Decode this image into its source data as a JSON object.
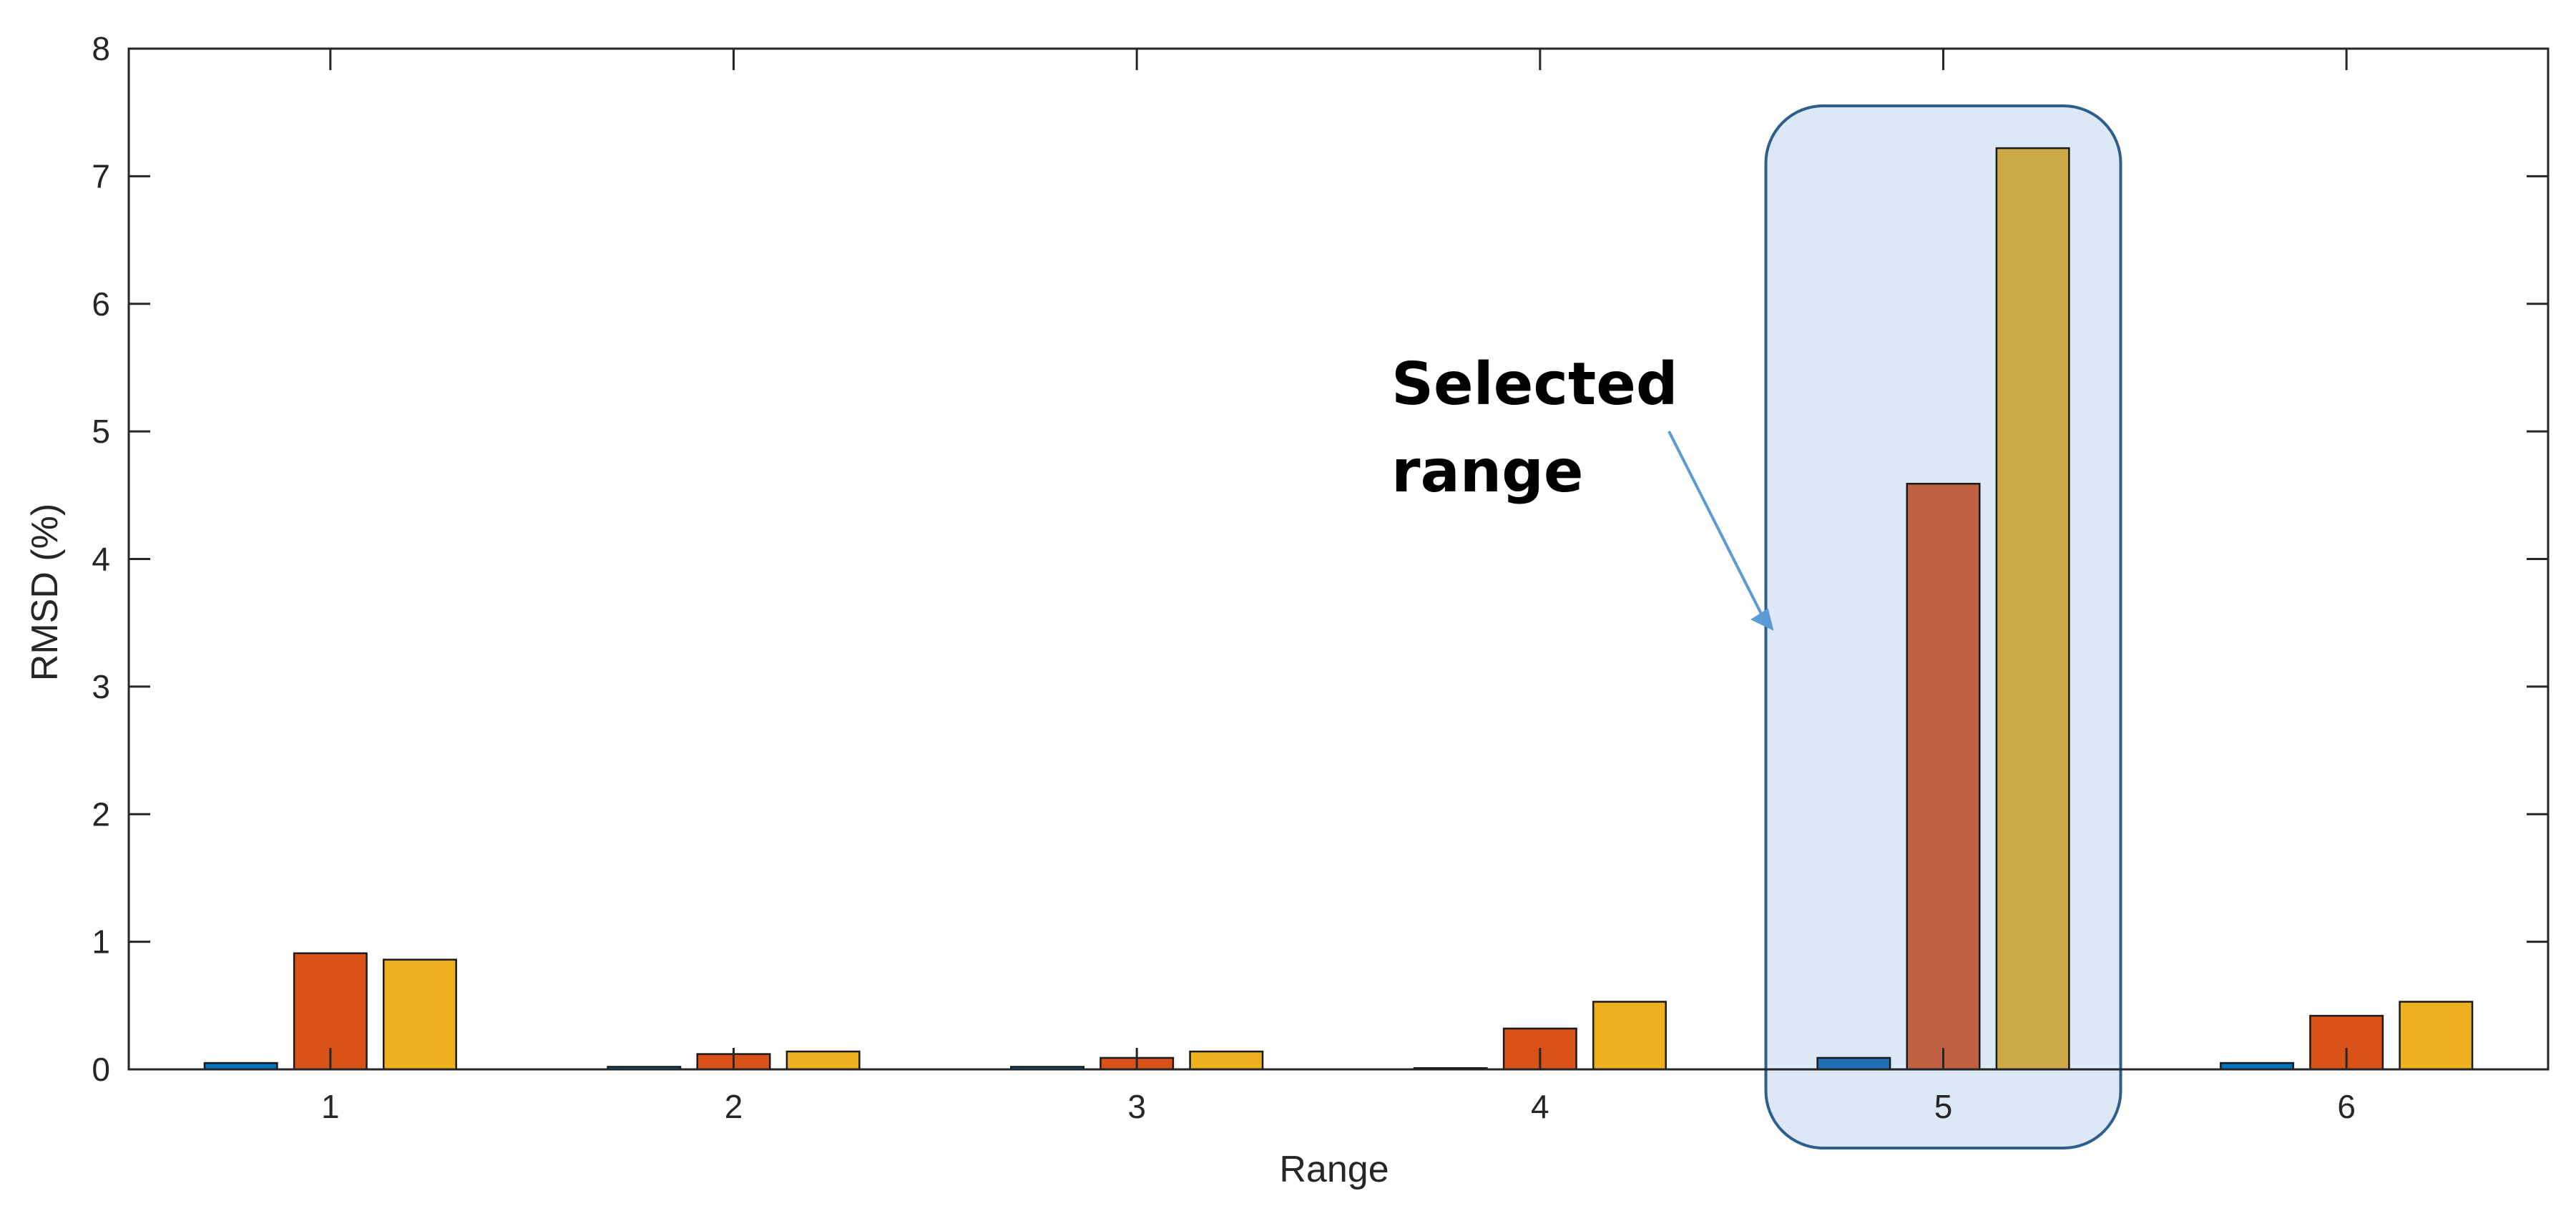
{
  "chart_data": {
    "type": "bar",
    "title": "",
    "xlabel": "Range",
    "ylabel": "RMSD (%)",
    "ylim": [
      0,
      8
    ],
    "yticks": [
      0,
      1,
      2,
      3,
      4,
      5,
      6,
      7,
      8
    ],
    "categories": [
      "1",
      "2",
      "3",
      "4",
      "5",
      "6"
    ],
    "series": [
      {
        "values": [
          0.05,
          0.02,
          0.02,
          0.01,
          0.09,
          0.05
        ],
        "color": "#0072BD",
        "highlight_color": "#1F6FB5"
      },
      {
        "values": [
          0.91,
          0.12,
          0.09,
          0.32,
          4.59,
          0.42
        ],
        "color": "#D95319",
        "highlight_color": "#C06040"
      },
      {
        "values": [
          0.86,
          0.14,
          0.14,
          0.53,
          7.22,
          0.53
        ],
        "color": "#EDB120",
        "highlight_color": "#CDAA45"
      }
    ],
    "grid": false,
    "legend": "none",
    "annotation": {
      "lines": [
        "Selected",
        "range"
      ],
      "highlighted_category": "5",
      "box_fill": "#DCE8F5",
      "box_stroke": "#2E5E8C",
      "arrow_color": "#5B9BD5"
    }
  }
}
